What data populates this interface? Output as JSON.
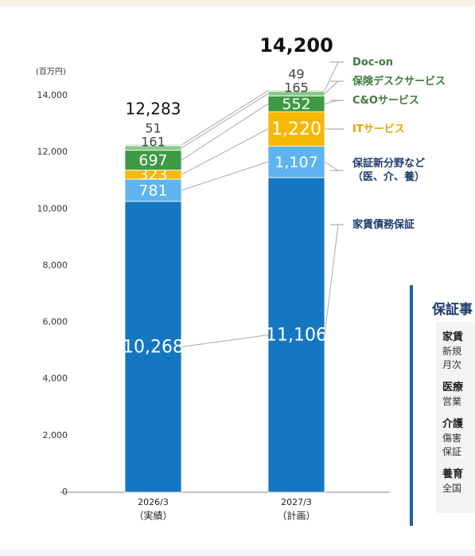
{
  "chart_data": {
    "type": "stacked-bar",
    "unit": "(百万円)",
    "categories": [
      "2026/3",
      "2027/3"
    ],
    "category_notes": [
      "（実績）",
      "（計画）"
    ],
    "ylim": [
      0,
      14000
    ],
    "yticks": [
      0,
      {
        "value": 2000,
        "label": "2,000"
      },
      {
        "value": 4000,
        "label": "4,000"
      },
      {
        "value": 6000,
        "label": "6,000"
      },
      {
        "value": 8000,
        "label": "8,000"
      },
      {
        "value": 10000,
        "label": "10,000"
      },
      {
        "value": 12000,
        "label": "12,000"
      },
      {
        "value": 14000,
        "label": "14,000"
      }
    ],
    "series": [
      {
        "name": "家賃債務保証",
        "color": "#1577c2",
        "label_color": "#1f3b6e",
        "values": [
          10268,
          11106
        ],
        "value_labels": [
          "10,268",
          "11,106"
        ]
      },
      {
        "name": "保証新分野など\n（医、介、養）",
        "color": "#5db4ee",
        "label_color": "#1f3b6e",
        "values": [
          781,
          1107
        ],
        "value_labels": [
          "781",
          "1,107"
        ]
      },
      {
        "name": "ITサービス",
        "color": "#f7b800",
        "label_color": "#f0a000",
        "values": [
          323,
          1220
        ],
        "value_labels": [
          "323",
          "1,220"
        ]
      },
      {
        "name": "C&Oサービス",
        "color": "#3f9a45",
        "label_color": "#3f7a3a",
        "values": [
          697,
          552
        ],
        "value_labels": [
          "697",
          "552"
        ]
      },
      {
        "name": "保険デスクサービス",
        "color": "#8cc88e",
        "label_color": "#3f7a3a",
        "values": [
          161,
          165
        ],
        "value_labels": [
          "161",
          "165"
        ]
      },
      {
        "name": "Doc-on",
        "color": "#c8e4c8",
        "label_color": "#3f7a3a",
        "values": [
          51,
          49
        ],
        "value_labels": [
          "51",
          "49"
        ]
      }
    ],
    "totals": {
      "values": [
        12283,
        14200
      ],
      "value_labels": [
        "12,283",
        "14,200"
      ]
    }
  },
  "side_panel": {
    "title": "保証事",
    "items": [
      {
        "heading": "家賃",
        "lines": [
          "新規",
          "月次"
        ]
      },
      {
        "heading": "医療",
        "lines": [
          "営業"
        ]
      },
      {
        "heading": "介護",
        "lines": [
          "傷害",
          "保証"
        ]
      },
      {
        "heading": "養育",
        "lines": [
          "全国"
        ]
      }
    ]
  }
}
